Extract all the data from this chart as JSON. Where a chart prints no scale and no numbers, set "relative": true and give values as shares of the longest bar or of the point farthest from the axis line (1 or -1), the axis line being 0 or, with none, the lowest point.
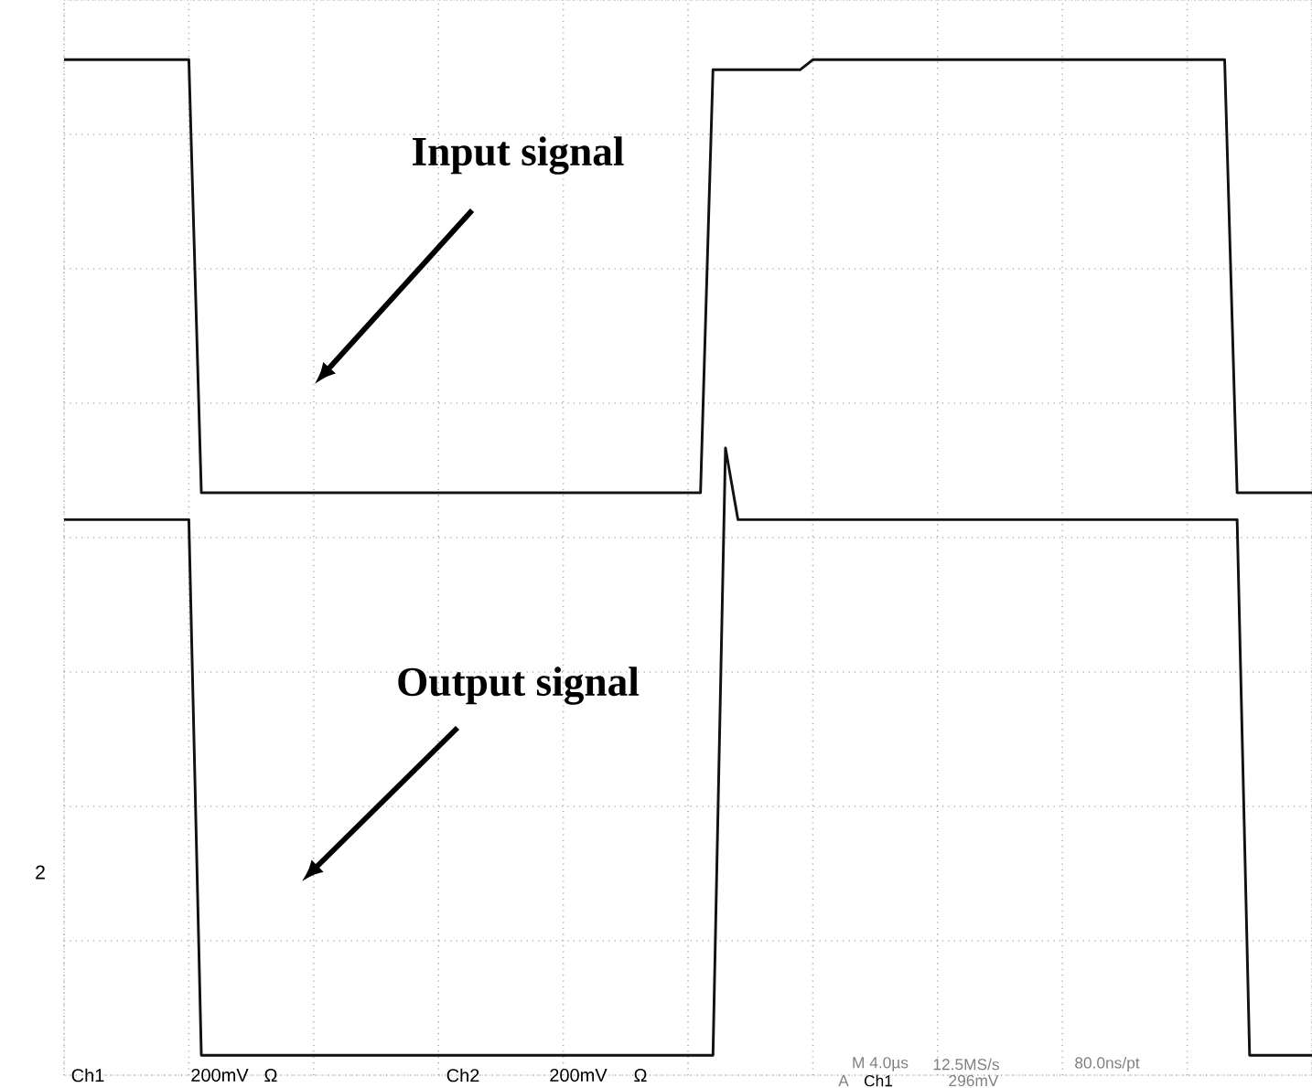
{
  "chart_data": {
    "type": "line",
    "relative": true,
    "grid": true,
    "marker": "none",
    "line_style": "solid",
    "categories": [
      null,
      null,
      null,
      null,
      null,
      null,
      null,
      null,
      null,
      null,
      null,
      null,
      null,
      null,
      null,
      null,
      null,
      null,
      null,
      null,
      null,
      null,
      null,
      null,
      null,
      null,
      null,
      null,
      null,
      null,
      null,
      null,
      null,
      null,
      null,
      null,
      null,
      null,
      null,
      null,
      null,
      null,
      null,
      null,
      null,
      null,
      null,
      null,
      null,
      null,
      null,
      null,
      null,
      null,
      null,
      null,
      null,
      null,
      null,
      null,
      null,
      null,
      null,
      null,
      null,
      null,
      null,
      null,
      null,
      null,
      null,
      null,
      null,
      null,
      null,
      null,
      null,
      null,
      null,
      null,
      null,
      null,
      null,
      null,
      null,
      null,
      null,
      null,
      null,
      null,
      null,
      null,
      null,
      null,
      null,
      null,
      null,
      null,
      null,
      null,
      null
    ],
    "series": [
      {
        "name": "Input signal",
        "color": "#111111",
        "values": [
          1,
          1,
          1,
          1,
          1,
          1,
          1,
          1,
          1,
          1,
          1,
          0.565,
          0.565,
          0.565,
          0.565,
          0.565,
          0.565,
          0.565,
          0.565,
          0.565,
          0.565,
          0.565,
          0.565,
          0.565,
          0.565,
          0.565,
          0.565,
          0.565,
          0.565,
          0.565,
          0.565,
          0.565,
          0.565,
          0.565,
          0.565,
          0.565,
          0.565,
          0.565,
          0.565,
          0.565,
          0.565,
          0.565,
          0.565,
          0.565,
          0.565,
          0.565,
          0.565,
          0.565,
          0.565,
          0.565,
          0.565,
          0.565,
          0.99,
          0.99,
          0.99,
          0.99,
          0.99,
          0.99,
          0.99,
          0.99,
          1,
          1,
          1,
          1,
          1,
          1,
          1,
          1,
          1,
          1,
          1,
          1,
          1,
          1,
          1,
          1,
          1,
          1,
          1,
          1,
          1,
          1,
          1,
          1,
          1,
          1,
          1,
          1,
          1,
          1,
          1,
          1,
          1,
          1,
          0.565,
          0.565,
          0.565,
          0.565,
          0.565,
          0.565,
          0.565
        ]
      },
      {
        "name": "Output signal",
        "color": "#111111",
        "values": [
          0.538,
          0.538,
          0.538,
          0.538,
          0.538,
          0.538,
          0.538,
          0.538,
          0.538,
          0.538,
          0.538,
          0,
          0,
          0,
          0,
          0,
          0,
          0,
          0,
          0,
          0,
          0,
          0,
          0,
          0,
          0,
          0,
          0,
          0,
          0,
          0,
          0,
          0,
          0,
          0,
          0,
          0,
          0,
          0,
          0,
          0,
          0,
          0,
          0,
          0,
          0,
          0,
          0,
          0,
          0,
          0,
          0,
          0,
          0.61,
          0.538,
          0.538,
          0.538,
          0.538,
          0.538,
          0.538,
          0.538,
          0.538,
          0.538,
          0.538,
          0.538,
          0.538,
          0.538,
          0.538,
          0.538,
          0.538,
          0.538,
          0.538,
          0.538,
          0.538,
          0.538,
          0.538,
          0.538,
          0.538,
          0.538,
          0.538,
          0.538,
          0.538,
          0.538,
          0.538,
          0.538,
          0.538,
          0.538,
          0.538,
          0.538,
          0.538,
          0.538,
          0.538,
          0.538,
          0.538,
          0.538,
          0,
          0,
          0,
          0,
          0,
          0
        ]
      }
    ],
    "annotations": [
      "2",
      "Ch1",
      "200mV",
      "Ω",
      "Ch2",
      "200mV",
      "Ω",
      "M 4.0µs",
      "12.5MS/s",
      "80.0ns/pt",
      "A",
      "Ch1",
      "296mV"
    ]
  }
}
